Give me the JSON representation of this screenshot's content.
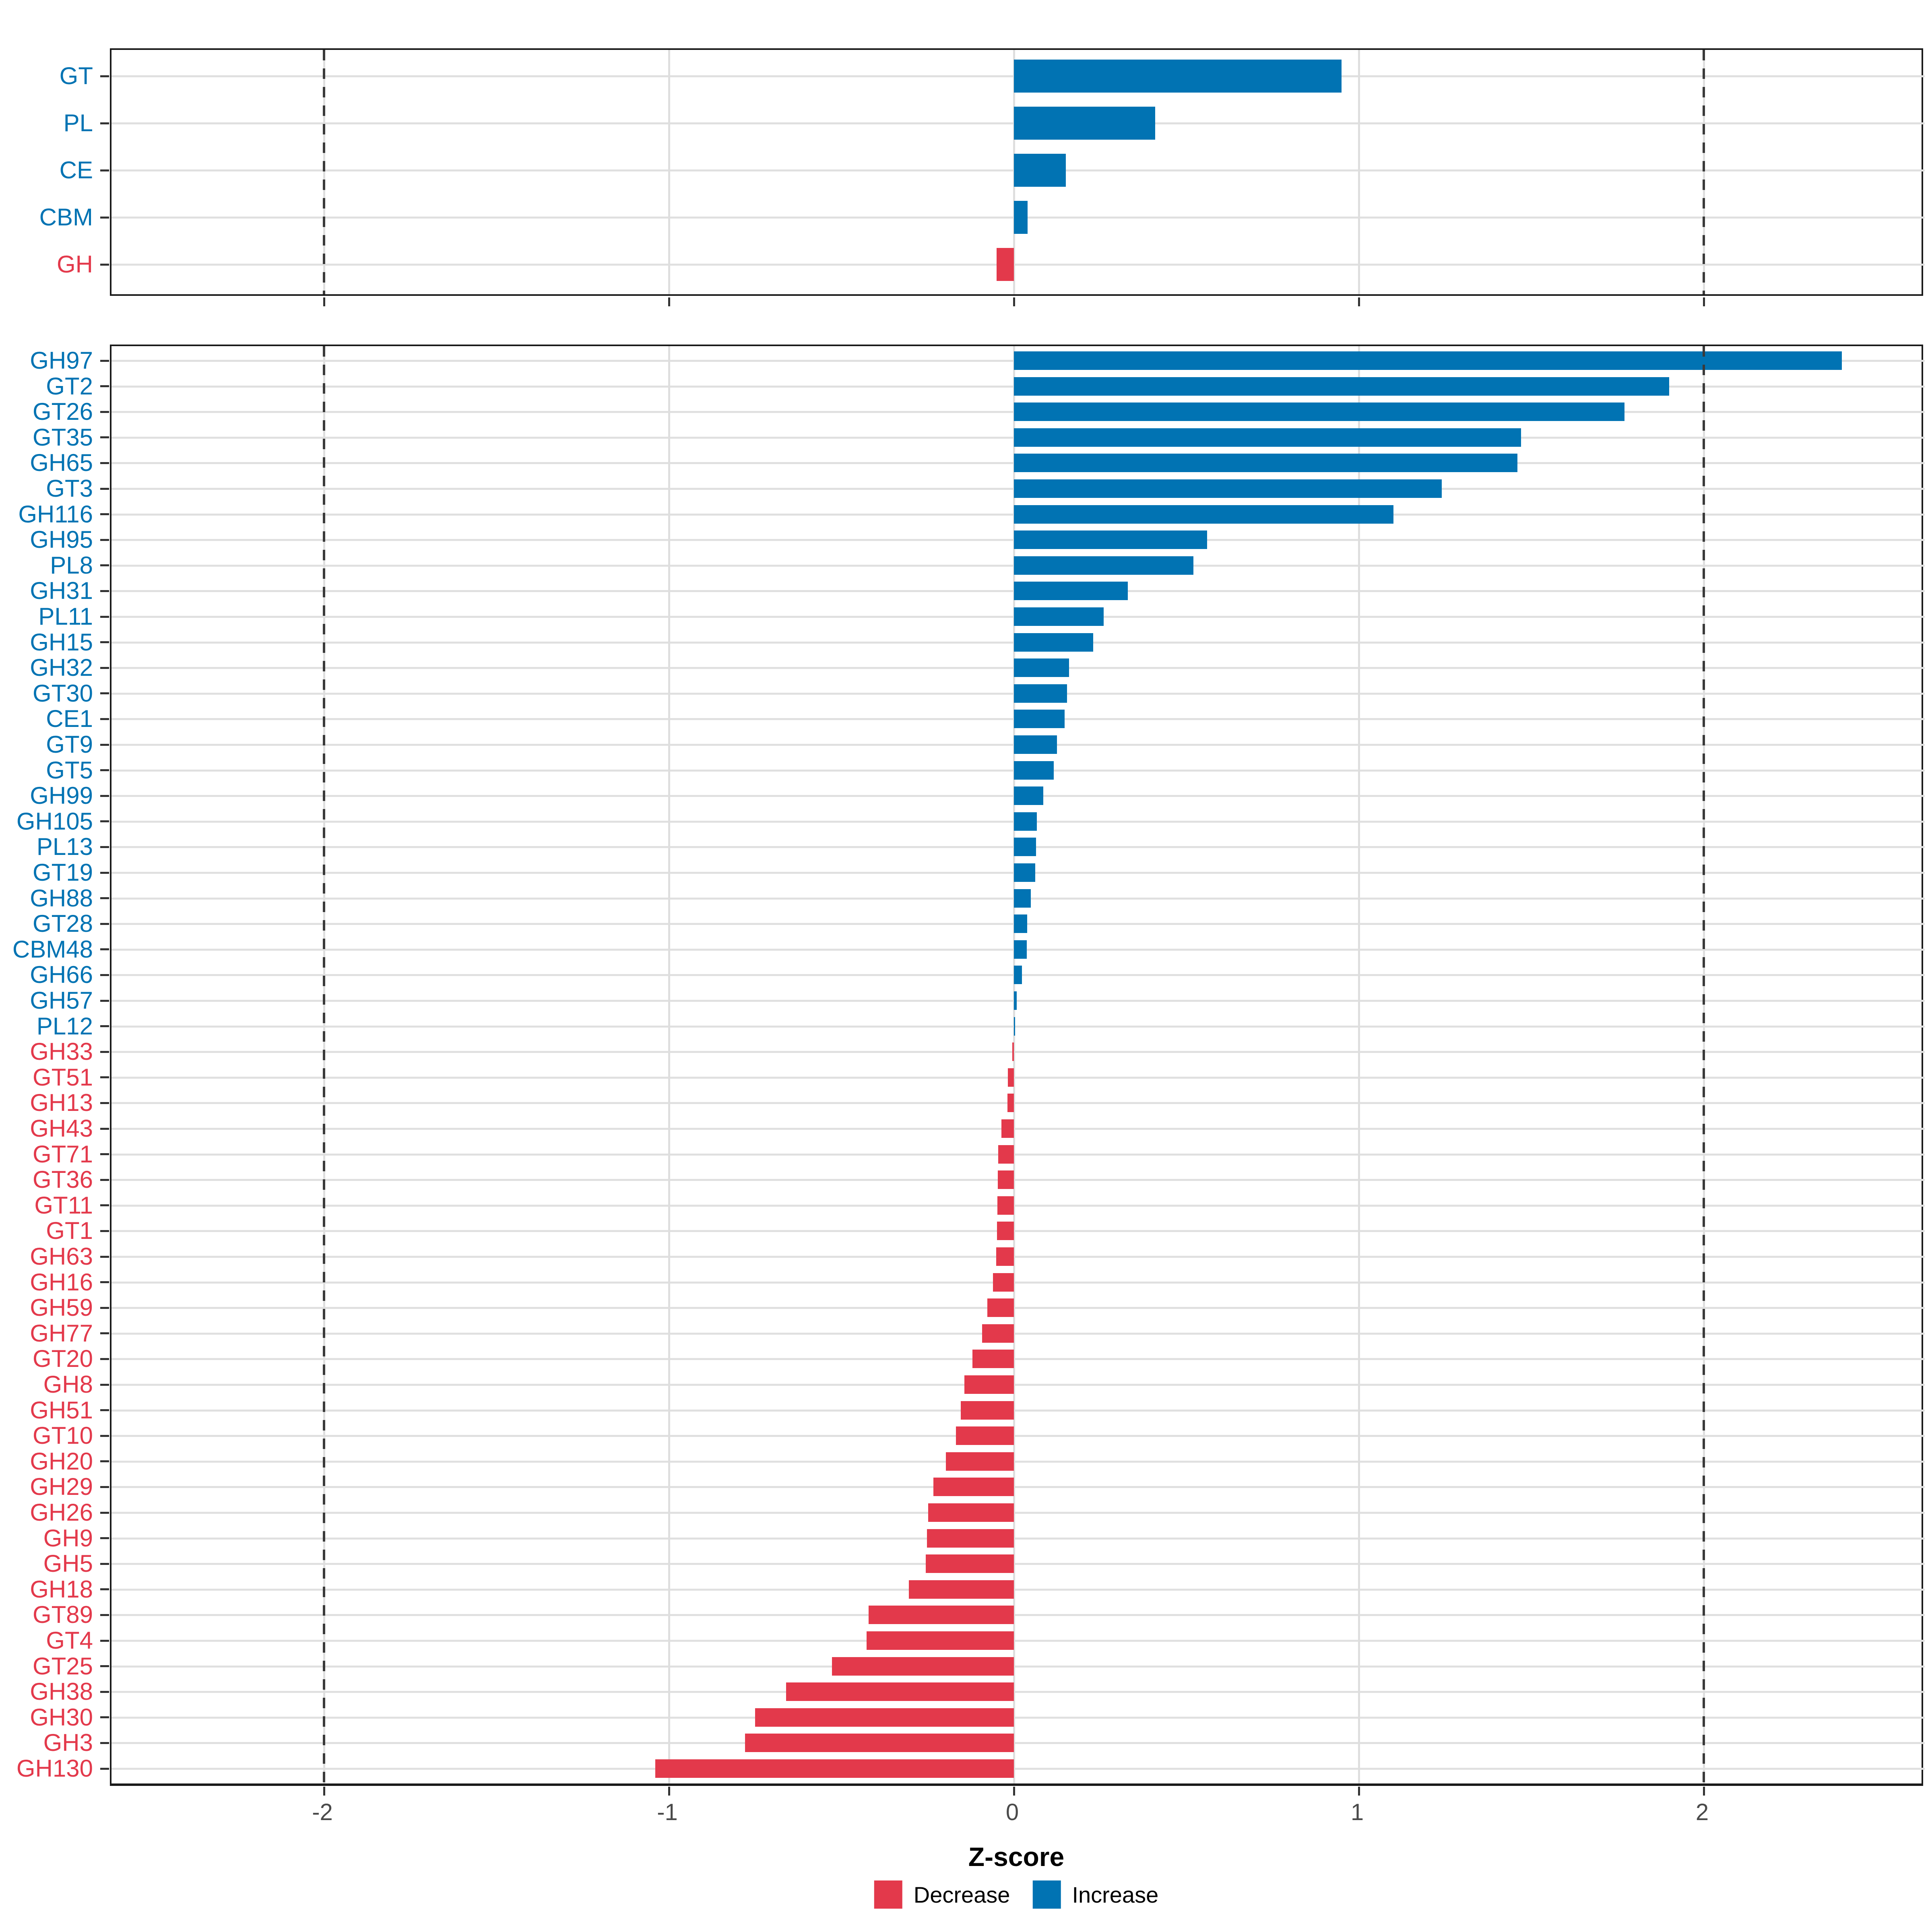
{
  "chart_data": {
    "type": "bar",
    "orientation": "horizontal",
    "xlabel": "Z-score",
    "x_ticks": [
      "-2",
      "-1",
      "0",
      "1",
      "2"
    ],
    "x_tick_values": [
      -2,
      -1,
      0,
      1,
      2
    ],
    "xlim": [
      -2.62,
      2.64
    ],
    "dashed_reference_lines_x": [
      -2,
      2
    ],
    "grid": true,
    "legend_position": "bottom",
    "colors": {
      "increase": "#0173b3",
      "decrease": "#e3394b"
    },
    "legend": [
      {
        "label": "Decrease",
        "color": "#e3394b"
      },
      {
        "label": "Increase",
        "color": "#0173b3"
      }
    ],
    "panels": [
      {
        "name": "cazyme-class-summary",
        "categories": [
          "GT",
          "PL",
          "CE",
          "CBM",
          "GH"
        ],
        "values": [
          0.95,
          0.41,
          0.15,
          0.04,
          -0.05
        ]
      },
      {
        "name": "cazyme-family-detail",
        "categories": [
          "GH97",
          "GT2",
          "GT26",
          "GT35",
          "GH65",
          "GT3",
          "GH116",
          "GH95",
          "PL8",
          "GH31",
          "PL11",
          "GH15",
          "GH32",
          "GT30",
          "CE1",
          "GT9",
          "GT5",
          "GH99",
          "GH105",
          "PL13",
          "GT19",
          "GH88",
          "GT28",
          "CBM48",
          "GH66",
          "GH57",
          "PL12",
          "GH33",
          "GT51",
          "GH13",
          "GH43",
          "GT71",
          "GT36",
          "GT11",
          "GT1",
          "GH63",
          "GH16",
          "GH59",
          "GH77",
          "GT20",
          "GH8",
          "GH51",
          "GT10",
          "GH20",
          "GH29",
          "GH26",
          "GH9",
          "GH5",
          "GH18",
          "GT89",
          "GT4",
          "GT25",
          "GH38",
          "GH30",
          "GH3",
          "GH130"
        ],
        "values": [
          2.4,
          1.9,
          1.77,
          1.47,
          1.46,
          1.24,
          1.1,
          0.56,
          0.52,
          0.33,
          0.26,
          0.23,
          0.16,
          0.154,
          0.147,
          0.125,
          0.115,
          0.085,
          0.066,
          0.064,
          0.062,
          0.049,
          0.039,
          0.037,
          0.023,
          0.008,
          0.004,
          -0.005,
          -0.017,
          -0.019,
          -0.036,
          -0.046,
          -0.047,
          -0.048,
          -0.049,
          -0.051,
          -0.061,
          -0.077,
          -0.092,
          -0.12,
          -0.143,
          -0.154,
          -0.168,
          -0.197,
          -0.233,
          -0.248,
          -0.252,
          -0.256,
          -0.305,
          -0.421,
          -0.427,
          -0.527,
          -0.66,
          -0.75,
          -0.78,
          -1.04
        ]
      }
    ]
  }
}
